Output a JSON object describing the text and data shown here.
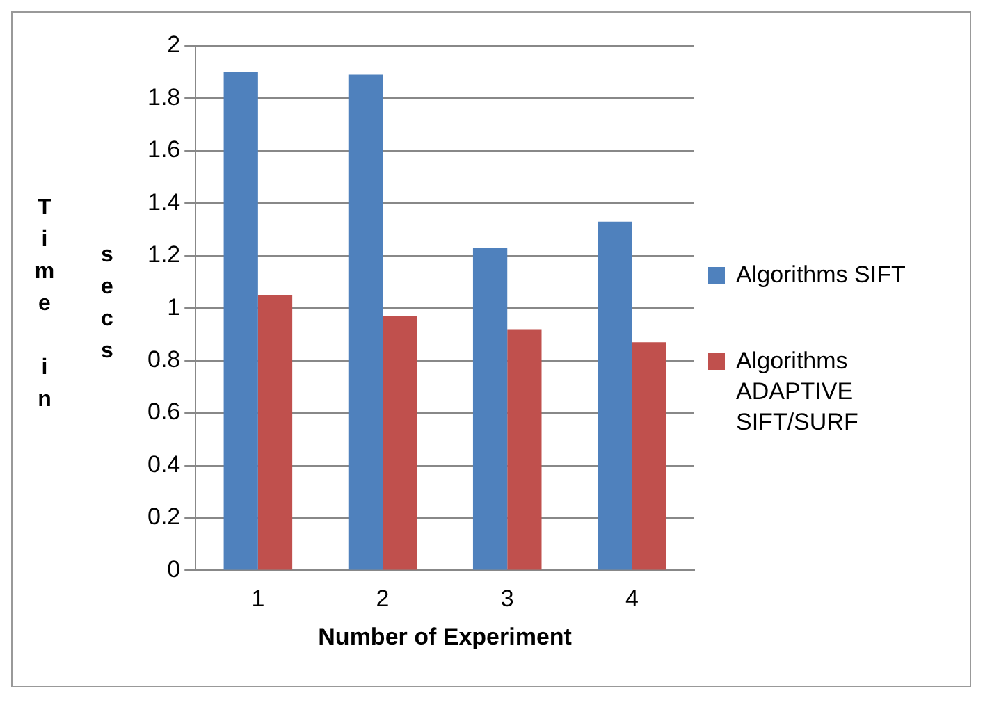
{
  "chart_data": {
    "type": "bar",
    "xlabel": "Number of Experiment",
    "ylabel": "Time in secs",
    "categories": [
      "1",
      "2",
      "3",
      "4"
    ],
    "series": [
      {
        "name": "Algorithms SIFT",
        "color": "#4f81bd",
        "values": [
          1.9,
          1.89,
          1.23,
          1.33
        ]
      },
      {
        "name": "Algorithms ADAPTIVE SIFT/SURF",
        "color": "#c0504d",
        "values": [
          1.05,
          0.97,
          0.92,
          0.87
        ]
      }
    ],
    "ylim": [
      0,
      2
    ],
    "yticks": [
      0,
      0.2,
      0.4,
      0.6,
      0.8,
      1,
      1.2,
      1.4,
      1.6,
      1.8,
      2
    ],
    "grid": "y",
    "legend": "right"
  }
}
